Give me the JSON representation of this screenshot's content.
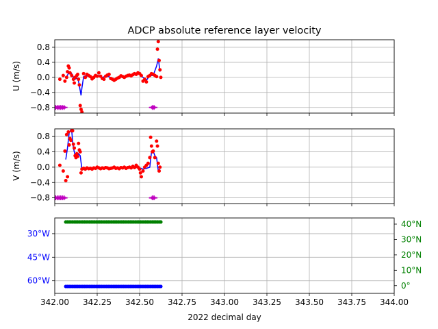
{
  "chart_data": [
    {
      "type": "scatter",
      "title": "ADCP absolute reference layer velocity",
      "ylabel": "U (m/s)",
      "xlim": [
        342.0,
        344.0
      ],
      "ylim": [
        -0.95,
        1.0
      ],
      "yticks": [
        -0.8,
        -0.4,
        0.0,
        0.4,
        0.8
      ],
      "ytick_labels": [
        "−0.8",
        "−0.4",
        "0.0",
        "0.4",
        "0.8"
      ],
      "grid": true,
      "series": [
        {
          "type": "line",
          "color": "#0000ff",
          "x": [
            342.07,
            342.08,
            342.09,
            342.1,
            342.11,
            342.12,
            342.13,
            342.14,
            342.15,
            342.155,
            342.16,
            342.17,
            342.18,
            342.2,
            342.22,
            342.24,
            342.26,
            342.28,
            342.3,
            342.32,
            342.34,
            342.36,
            342.38,
            342.4,
            342.42,
            342.44,
            342.46,
            342.48,
            342.5,
            342.52,
            342.54,
            342.56,
            342.58,
            342.6,
            342.61,
            342.62
          ],
          "y": [
            0.02,
            0.1,
            0.15,
            0.1,
            0.0,
            -0.05,
            -0.02,
            -0.1,
            -0.35,
            -0.48,
            -0.28,
            0.02,
            0.04,
            0.03,
            0.0,
            0.02,
            0.05,
            0.0,
            0.03,
            0.02,
            -0.05,
            -0.04,
            -0.01,
            0.02,
            0.03,
            0.04,
            0.05,
            0.08,
            0.09,
            0.0,
            -0.08,
            0.05,
            0.05,
            0.3,
            0.5,
            0.15
          ]
        },
        {
          "type": "scatter",
          "color": "#ff0000",
          "x": [
            342.03,
            342.05,
            342.06,
            342.07,
            342.075,
            342.08,
            342.085,
            342.09,
            342.1,
            342.11,
            342.115,
            342.12,
            342.13,
            342.135,
            342.14,
            342.145,
            342.15,
            342.155,
            342.16,
            342.17,
            342.18,
            342.19,
            342.2,
            342.21,
            342.22,
            342.23,
            342.24,
            342.25,
            342.26,
            342.27,
            342.28,
            342.29,
            342.3,
            342.31,
            342.32,
            342.33,
            342.34,
            342.35,
            342.36,
            342.37,
            342.38,
            342.39,
            342.4,
            342.41,
            342.42,
            342.43,
            342.44,
            342.45,
            342.46,
            342.47,
            342.48,
            342.49,
            342.5,
            342.51,
            342.52,
            342.53,
            342.54,
            342.55,
            342.56,
            342.57,
            342.58,
            342.59,
            342.6,
            342.605,
            342.61,
            342.615,
            342.62,
            342.625
          ],
          "y": [
            -0.05,
            0.05,
            -0.1,
            0.0,
            0.15,
            0.3,
            0.25,
            0.12,
            0.05,
            -0.05,
            -0.15,
            0.0,
            0.05,
            0.08,
            -0.05,
            -0.2,
            -0.75,
            -0.85,
            -0.92,
            0.1,
            0.0,
            0.08,
            0.05,
            0.02,
            -0.04,
            0.0,
            0.05,
            0.03,
            0.12,
            0.03,
            -0.03,
            -0.05,
            0.03,
            0.06,
            0.08,
            -0.03,
            -0.05,
            -0.08,
            -0.05,
            -0.02,
            0.0,
            0.04,
            0.02,
            0.0,
            0.03,
            0.05,
            0.06,
            0.04,
            0.07,
            0.1,
            0.08,
            0.12,
            0.1,
            0.05,
            -0.1,
            -0.05,
            -0.12,
            0.02,
            0.05,
            0.1,
            0.08,
            0.05,
            0.02,
            0.75,
            0.95,
            0.45,
            0.2,
            0.0
          ]
        },
        {
          "type": "error",
          "color": "#bf00bf",
          "x": [
            342.005,
            342.015,
            342.025,
            342.035,
            342.045,
            342.055,
            342.575,
            342.585
          ],
          "y": [
            -0.8,
            -0.8,
            -0.8,
            -0.8,
            -0.8,
            -0.8,
            -0.8,
            -0.8
          ]
        }
      ]
    },
    {
      "type": "scatter",
      "ylabel": "V (m/s)",
      "xlim": [
        342.0,
        344.0
      ],
      "ylim": [
        -0.95,
        1.0
      ],
      "yticks": [
        -0.8,
        -0.4,
        0.0,
        0.4,
        0.8
      ],
      "ytick_labels": [
        "−0.8",
        "−0.4",
        "0.0",
        "0.4",
        "0.8"
      ],
      "grid": true,
      "series": [
        {
          "type": "line",
          "color": "#0000ff",
          "x": [
            342.065,
            342.075,
            342.085,
            342.095,
            342.1,
            342.105,
            342.11,
            342.12,
            342.13,
            342.14,
            342.15,
            342.16,
            342.17,
            342.2,
            342.25,
            342.3,
            342.35,
            342.4,
            342.45,
            342.48,
            342.5,
            342.52,
            342.54,
            342.56,
            342.57,
            342.58,
            342.59,
            342.6,
            342.61,
            342.62
          ],
          "y": [
            0.2,
            0.5,
            0.9,
            0.98,
            0.95,
            0.7,
            0.5,
            0.3,
            0.25,
            0.35,
            0.3,
            -0.05,
            -0.04,
            -0.03,
            -0.03,
            -0.02,
            -0.03,
            -0.02,
            -0.01,
            0.0,
            -0.02,
            -0.05,
            -0.03,
            0.0,
            0.4,
            0.42,
            0.3,
            0.25,
            -0.1,
            -0.05
          ]
        },
        {
          "type": "scatter",
          "color": "#ff0000",
          "x": [
            342.03,
            342.05,
            342.06,
            342.065,
            342.07,
            342.075,
            342.08,
            342.085,
            342.09,
            342.095,
            342.1,
            342.105,
            342.11,
            342.115,
            342.12,
            342.125,
            342.13,
            342.135,
            342.14,
            342.145,
            342.15,
            342.155,
            342.16,
            342.17,
            342.18,
            342.19,
            342.2,
            342.21,
            342.22,
            342.23,
            342.24,
            342.25,
            342.26,
            342.27,
            342.28,
            342.29,
            342.3,
            342.31,
            342.32,
            342.33,
            342.34,
            342.35,
            342.36,
            342.37,
            342.38,
            342.39,
            342.4,
            342.41,
            342.42,
            342.43,
            342.44,
            342.45,
            342.46,
            342.47,
            342.48,
            342.49,
            342.5,
            342.505,
            342.51,
            342.52,
            342.53,
            342.54,
            342.55,
            342.56,
            342.565,
            342.57,
            342.575,
            342.58,
            342.59,
            342.6,
            342.605,
            342.61,
            342.615,
            342.62
          ],
          "y": [
            0.05,
            -0.1,
            0.42,
            -0.35,
            0.85,
            -0.25,
            0.92,
            0.58,
            0.75,
            0.7,
            0.95,
            0.95,
            0.6,
            0.5,
            0.3,
            0.25,
            0.35,
            0.28,
            0.62,
            0.45,
            0.4,
            -0.15,
            -0.05,
            -0.03,
            -0.05,
            -0.02,
            -0.04,
            -0.03,
            -0.05,
            -0.02,
            -0.03,
            0.0,
            -0.02,
            -0.04,
            -0.02,
            -0.03,
            -0.01,
            -0.02,
            -0.04,
            -0.03,
            -0.02,
            0.0,
            -0.03,
            -0.02,
            -0.04,
            -0.01,
            -0.02,
            0.0,
            -0.03,
            -0.01,
            0.0,
            -0.02,
            0.02,
            -0.01,
            0.05,
            0.0,
            -0.05,
            -0.15,
            -0.25,
            -0.1,
            0.0,
            0.05,
            0.1,
            0.25,
            0.78,
            0.55,
            0.4,
            0.42,
            0.25,
            0.68,
            0.55,
            0.1,
            -0.1,
            0.0
          ]
        },
        {
          "type": "error",
          "color": "#bf00bf",
          "x": [
            342.005,
            342.015,
            342.025,
            342.035,
            342.045,
            342.055,
            342.575,
            342.585
          ],
          "y": [
            -0.8,
            -0.8,
            -0.8,
            -0.8,
            -0.8,
            -0.8,
            -0.8,
            -0.8
          ]
        }
      ]
    },
    {
      "type": "scatter",
      "xlabel": "2022 decimal day",
      "xlim": [
        342.0,
        344.0
      ],
      "xticks": [
        342.0,
        342.25,
        342.5,
        342.75,
        343.0,
        343.25,
        343.5,
        343.75,
        344.0
      ],
      "xtick_labels": [
        "342.00",
        "342.25",
        "342.50",
        "342.75",
        "343.00",
        "343.25",
        "343.50",
        "343.75",
        "344.00"
      ],
      "grid": true,
      "left_axis": {
        "color": "#0000ff",
        "ylim": [
          -68,
          -20
        ],
        "yticks": [
          -30,
          -45,
          -60
        ],
        "ytick_labels": [
          "30°W",
          "45°W",
          "60°W"
        ]
      },
      "right_axis": {
        "color": "#008000",
        "ylim": [
          -5,
          44
        ],
        "yticks": [
          0,
          10,
          20,
          30,
          40
        ],
        "ytick_labels": [
          "0°",
          "10°N",
          "20°N",
          "30°N",
          "40°N"
        ]
      },
      "series": [
        {
          "axis": "left",
          "color": "#0000ff",
          "x_start": 342.065,
          "x_end": 342.63,
          "x_step": 0.01,
          "y": -63.6
        },
        {
          "axis": "right",
          "color": "#008000",
          "x_start": 342.065,
          "x_end": 342.63,
          "x_step": 0.01,
          "y": 41.4
        }
      ]
    }
  ]
}
